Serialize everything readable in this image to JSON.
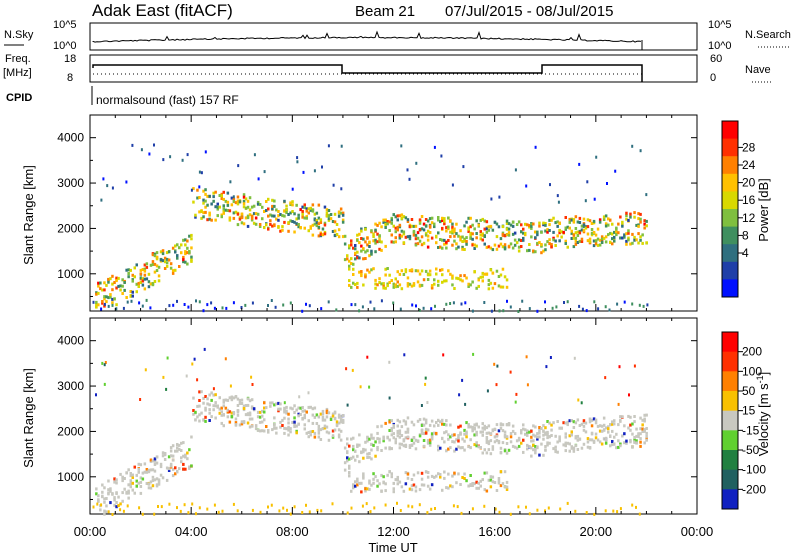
{
  "header": {
    "radar": "Adak East (fitACF)",
    "beam": "Beam 21",
    "dates": "07/Jul/2015 - 08/Jul/2015"
  },
  "status": {
    "nsky_label": "N.Sky",
    "nsky_ticks": [
      "10^5",
      "10^0"
    ],
    "nsearch_ticks": [
      "10^5",
      "10^0"
    ],
    "nsearch_label": "N.Search",
    "freq_label_1": "Freq.",
    "freq_label_2": "[MHz]",
    "freq_ticks": [
      "18",
      "8"
    ],
    "nave_ticks": [
      "60",
      "0"
    ],
    "nave_label": "Nave",
    "cpid_label": "CPID",
    "cpid_text": "normalsound (fast) 157 RF"
  },
  "chart_data": [
    {
      "type": "heatmap",
      "name": "power",
      "ylabel": "Slant Range [km]",
      "xlabel": "",
      "ylim": [
        180,
        4500
      ],
      "yticks": [
        1000,
        2000,
        3000,
        4000
      ],
      "colorbar_label": "Power [dB]",
      "colorbar_ticks": [
        "28",
        "24",
        "20",
        "16",
        "12",
        "8",
        "4"
      ],
      "colors": [
        "#0010ff",
        "#1f3fa8",
        "#2f6f7f",
        "#3f8f5f",
        "#7fbf3f",
        "#d8d800",
        "#ffc000",
        "#ff8000",
        "#ff3000",
        "#ff0000"
      ],
      "echo_bands": [
        {
          "t0": 2.0,
          "t1": 10.0,
          "r0": 700,
          "r1": 2700,
          "level": 0.5
        },
        {
          "t0": 10.0,
          "t1": 18.0,
          "r0": 1300,
          "r1": 2300,
          "level": 0.3
        },
        {
          "t0": 12.0,
          "t1": 16.5,
          "r0": 650,
          "r1": 1200,
          "level": 0.5
        },
        {
          "t0": 18.0,
          "t1": 22.0,
          "r0": 1300,
          "r1": 2300,
          "level": 0.55
        }
      ]
    },
    {
      "type": "heatmap",
      "name": "velocity",
      "ylabel": "Slant Range [km]",
      "xlabel": "Time UT",
      "ylim": [
        180,
        4500
      ],
      "yticks": [
        1000,
        2000,
        3000,
        4000
      ],
      "xticks": [
        "00:00",
        "04:00",
        "08:00",
        "12:00",
        "16:00",
        "20:00",
        "00:00"
      ],
      "x_hours": [
        0,
        4,
        8,
        12,
        16,
        20,
        24
      ],
      "xlim_hours": [
        0,
        24
      ],
      "colorbar_label": "Velocity [m s^-1]",
      "colorbar_ticks": [
        "200",
        "100",
        "50",
        "15",
        "-15",
        "-50",
        "-100",
        "-200"
      ],
      "colors": [
        "#1020c0",
        "#206060",
        "#208040",
        "#60d030",
        "#c8c8c0",
        "#f8c000",
        "#ff8000",
        "#ff3000",
        "#ff0000"
      ]
    }
  ]
}
